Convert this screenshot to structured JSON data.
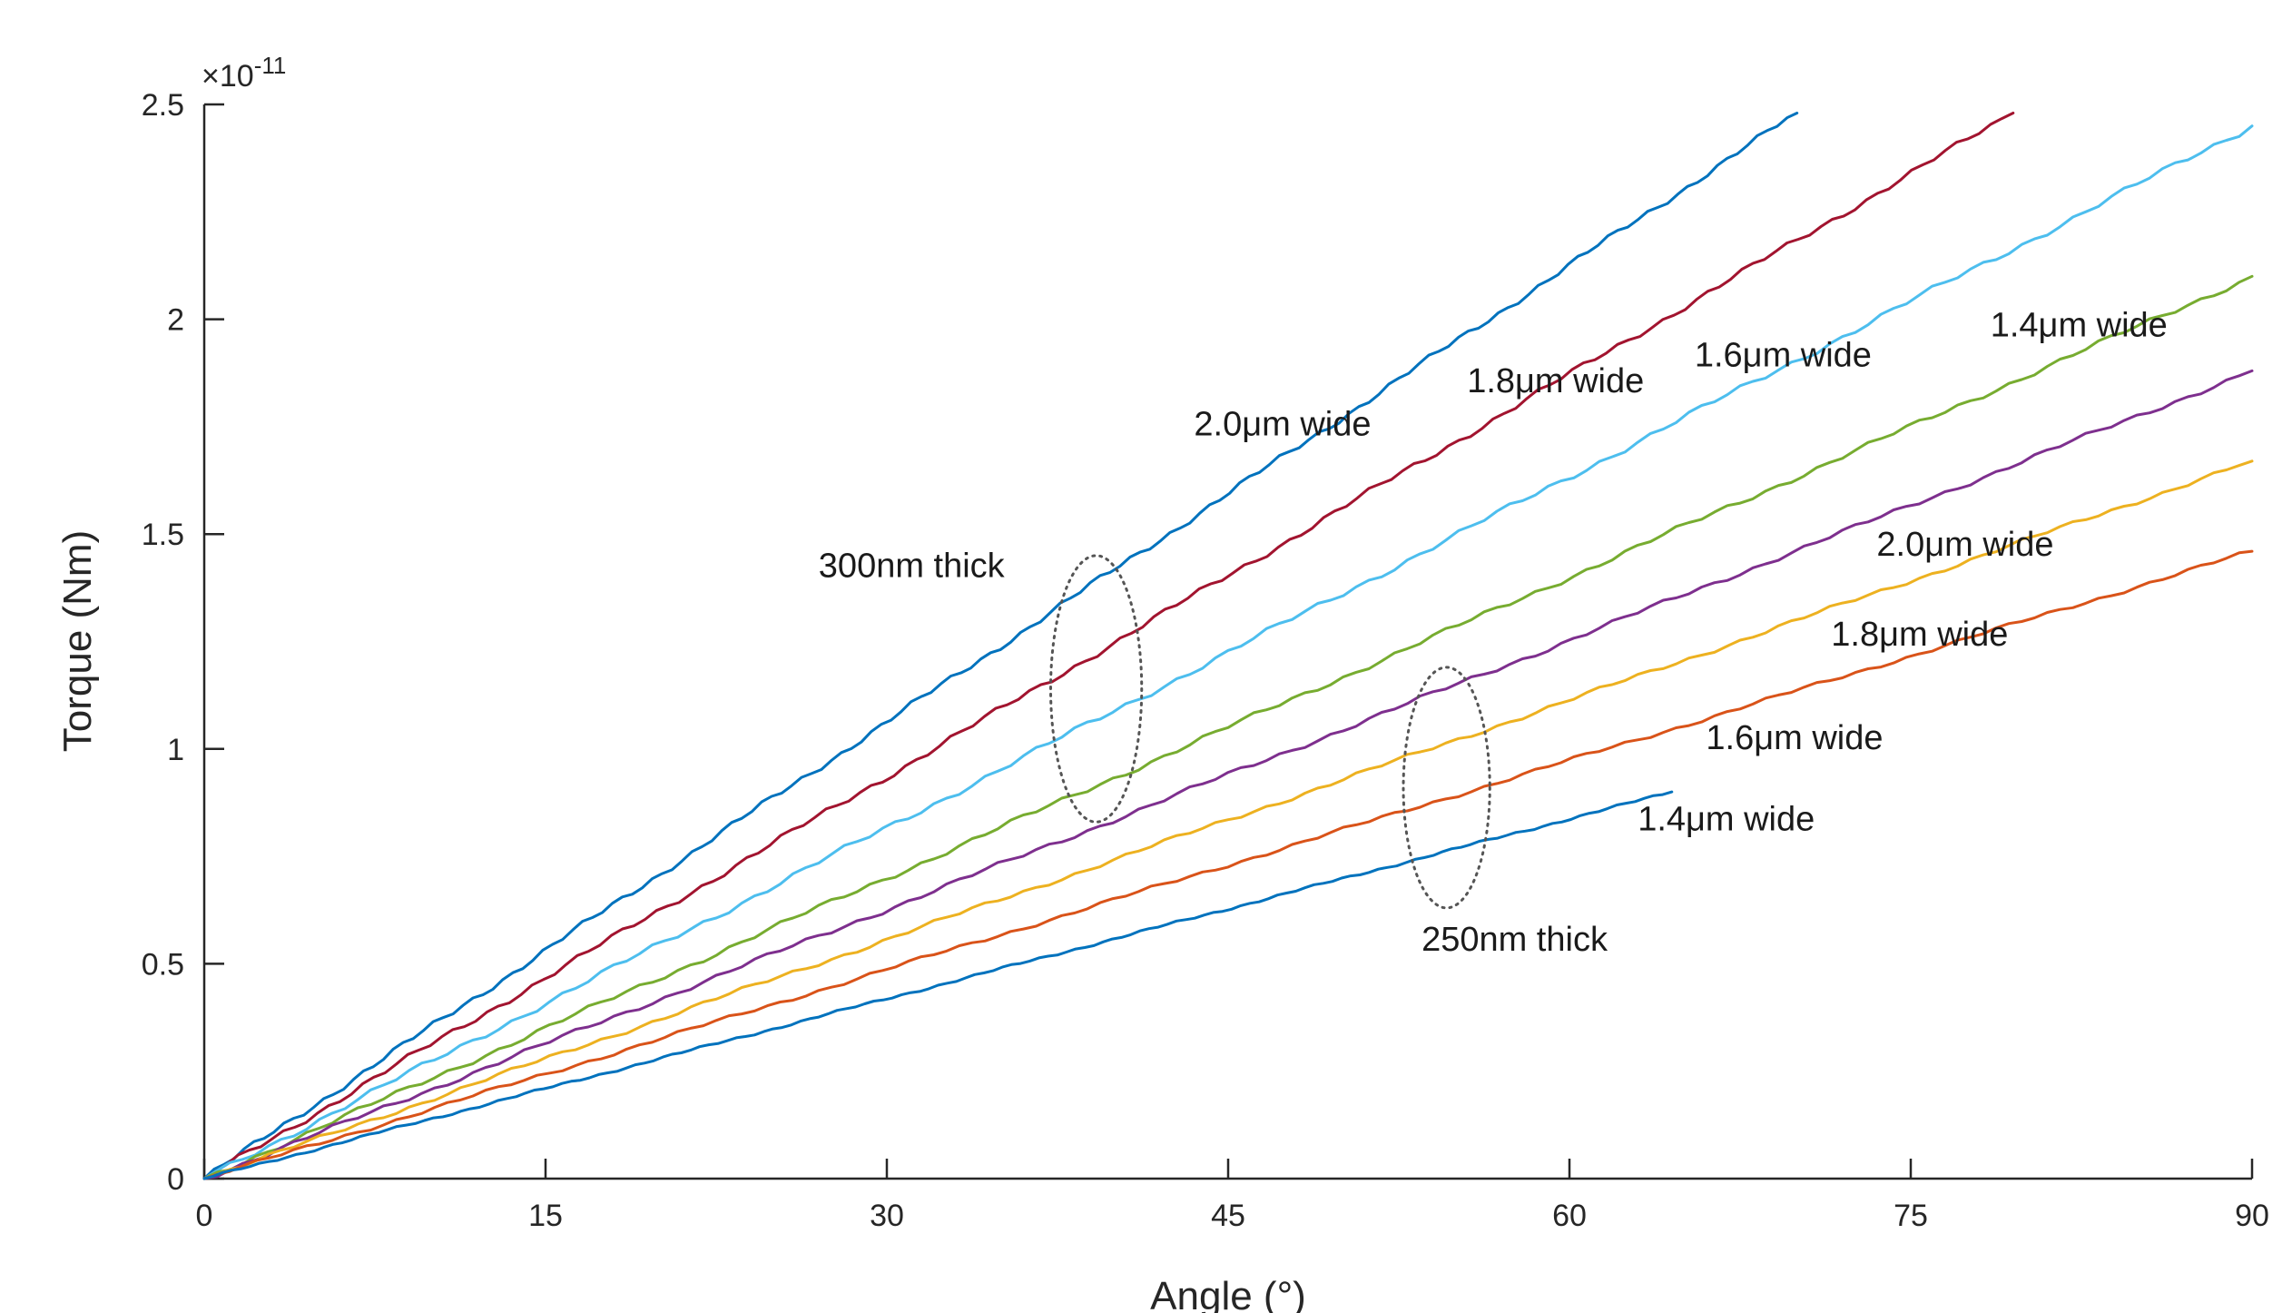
{
  "chart_data": {
    "type": "line",
    "xlabel": "Angle (°)",
    "ylabel": "Torque (Nm)",
    "y_exponent_label": "×10",
    "y_exponent_power": "-11",
    "xlim": [
      0,
      90
    ],
    "ylim": [
      0,
      2.5
    ],
    "x_ticks": [
      "0",
      "15",
      "30",
      "45",
      "60",
      "75",
      "90"
    ],
    "x_tick_values": [
      0,
      15,
      30,
      45,
      60,
      75,
      90
    ],
    "y_ticks": [
      "0",
      "0.5",
      "1",
      "1.5",
      "2",
      "2.5"
    ],
    "y_tick_values": [
      0,
      0.5,
      1,
      1.5,
      2,
      2.5
    ],
    "grid": false,
    "legend": "none",
    "series": [
      {
        "color": "#0072BD",
        "group": "300nm thick",
        "x": [
          0,
          70
        ],
        "y": [
          0,
          2.48
        ]
      },
      {
        "color": "#A2142F",
        "group": "300nm thick",
        "x": [
          0,
          79.5
        ],
        "y": [
          0,
          2.48
        ]
      },
      {
        "color": "#4DBEEE",
        "group": "300nm thick",
        "x": [
          0,
          90
        ],
        "y": [
          0,
          2.45
        ]
      },
      {
        "color": "#77AC30",
        "group": "300nm thick",
        "x": [
          0,
          90
        ],
        "y": [
          0,
          2.1
        ]
      },
      {
        "color": "#7E2F8E",
        "group": "250nm thick",
        "x": [
          0,
          90
        ],
        "y": [
          0,
          1.88
        ]
      },
      {
        "color": "#EDB120",
        "group": "250nm thick",
        "x": [
          0,
          90
        ],
        "y": [
          0,
          1.67
        ]
      },
      {
        "color": "#D95319",
        "group": "250nm thick",
        "x": [
          0,
          90
        ],
        "y": [
          0,
          1.46
        ]
      },
      {
        "color": "#0072BD",
        "group": "250nm thick",
        "x": [
          0,
          64.5
        ],
        "y": [
          0,
          0.9
        ]
      }
    ],
    "annotations": [
      {
        "text": "2.0μm wide",
        "x": 43.5,
        "y": 1.73
      },
      {
        "text": "1.8μm wide",
        "x": 55.5,
        "y": 1.83
      },
      {
        "text": "1.6μm wide",
        "x": 65.5,
        "y": 1.89
      },
      {
        "text": "1.4μm wide",
        "x": 78.5,
        "y": 1.96
      },
      {
        "text": "300nm thick",
        "x": 27,
        "y": 1.4
      },
      {
        "text": "2.0μm wide",
        "x": 73.5,
        "y": 1.45
      },
      {
        "text": "1.8μm wide",
        "x": 71.5,
        "y": 1.24
      },
      {
        "text": "1.6μm wide",
        "x": 66,
        "y": 1.0
      },
      {
        "text": "1.4μm wide",
        "x": 63,
        "y": 0.81
      },
      {
        "text": "250nm thick",
        "x": 53.5,
        "y": 0.53
      }
    ],
    "group_markers": [
      {
        "label": "300nm thick",
        "cx": 39.2,
        "cy": 1.14,
        "rx": 2.0,
        "ry": 0.31
      },
      {
        "label": "250nm thick",
        "cx": 54.6,
        "cy": 0.91,
        "rx": 1.9,
        "ry": 0.28
      }
    ]
  }
}
